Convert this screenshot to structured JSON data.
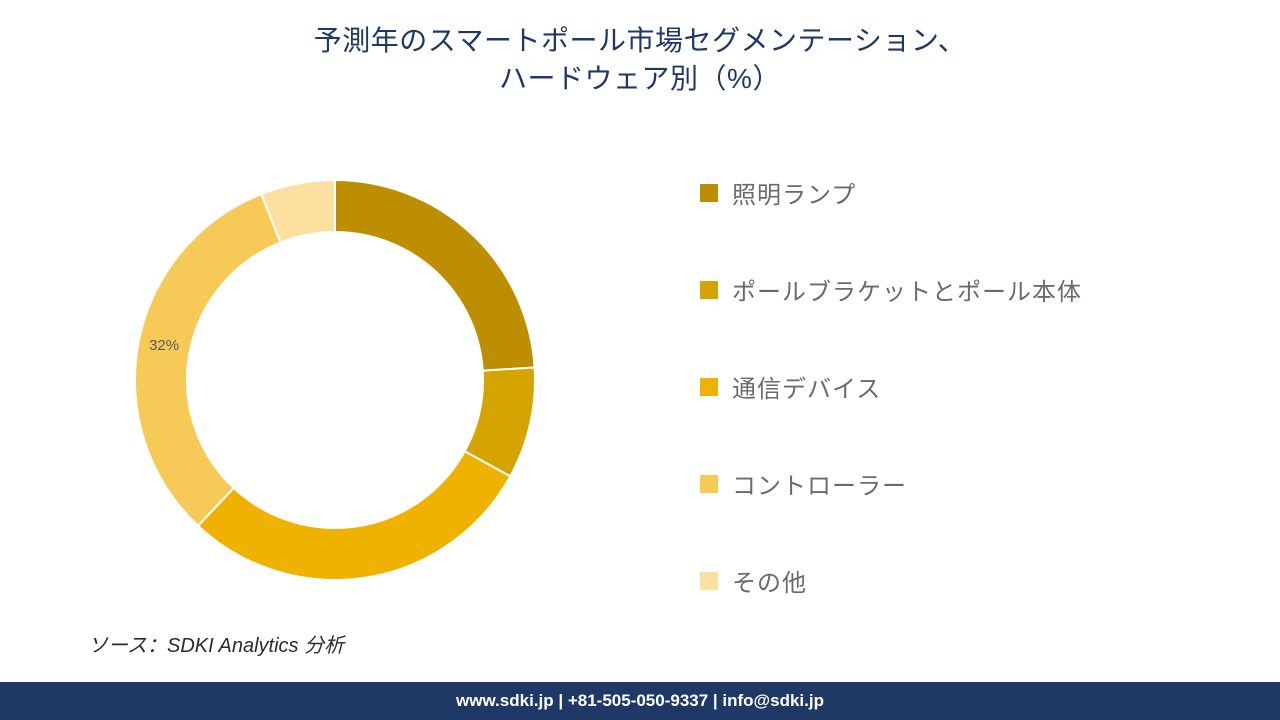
{
  "title": {
    "line1": "予測年のスマートポール市場セグメンテーション、",
    "line2": "ハードウェア別（%）",
    "color": "#1f3966",
    "fontsize": 28
  },
  "chart": {
    "type": "donut",
    "inner_radius_ratio": 0.74,
    "start_angle_deg": 0,
    "direction": "clockwise",
    "background_color": "#ffffff",
    "series": [
      {
        "name": "照明ランプ",
        "value": 24,
        "color": "#bd8e00"
      },
      {
        "name": "ポールブラケットとポール本体",
        "value": 9,
        "color": "#d6a400"
      },
      {
        "name": "通信デバイス",
        "value": 29,
        "color": "#f0b200"
      },
      {
        "name": "コントローラー",
        "value": 32,
        "color": "#f7ca58",
        "show_label": true,
        "label_text": "32%"
      },
      {
        "name": "その他",
        "value": 6,
        "color": "#fbe0a0"
      }
    ],
    "label_fontsize": 15,
    "label_color": "#5a5a5a"
  },
  "legend": {
    "fontsize": 24,
    "text_color": "#6a6a6a",
    "swatch_size": 18,
    "row_gap": 62
  },
  "source": {
    "text": "ソース：SDKI Analytics 分析",
    "fontsize": 20,
    "color": "#2b2b2b"
  },
  "footer": {
    "text": "www.sdki.jp | +81-505-050-9337 | info@sdki.jp",
    "background_color": "#1f3966",
    "text_color": "#ffffff",
    "fontsize": 17
  }
}
